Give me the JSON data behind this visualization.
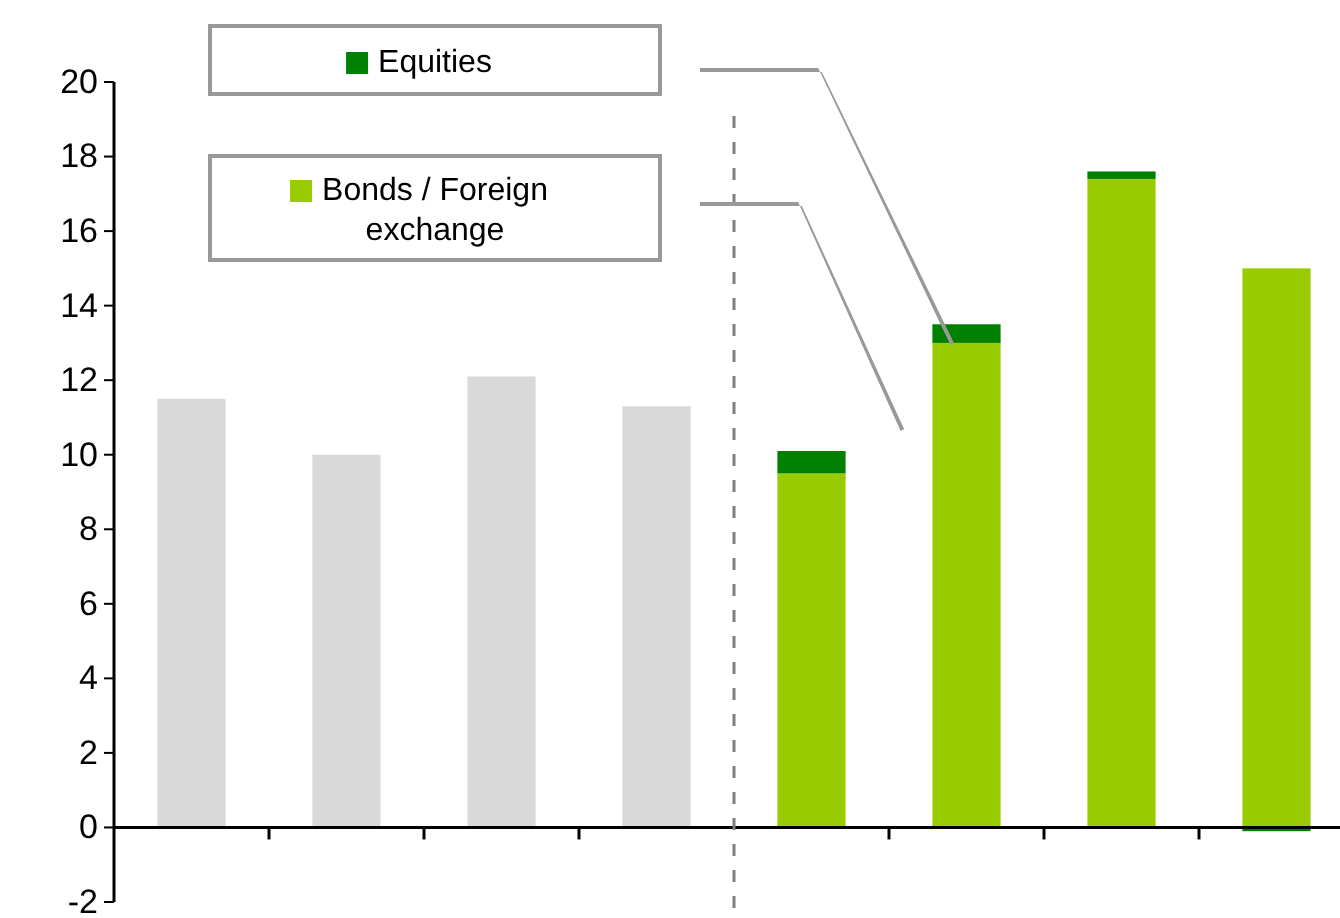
{
  "chart_data": {
    "type": "bar",
    "stacked": true,
    "legend": "top left",
    "grid": false,
    "categories": [
      null,
      null,
      null,
      null,
      null,
      null,
      null,
      null
    ],
    "series": [
      {
        "color": "#d9d9d9",
        "values": [
          11.5,
          10.0,
          12.1,
          11.3,
          null,
          null,
          null,
          null
        ]
      },
      {
        "name": "Bonds / Foreign exchange",
        "color": "#99cc00",
        "values": [
          null,
          null,
          null,
          null,
          9.5,
          13.0,
          17.4,
          15.0
        ]
      },
      {
        "name": "Equities",
        "color": "#008000",
        "values": [
          null,
          null,
          null,
          null,
          0.6,
          0.5,
          0.2,
          -0.1
        ]
      }
    ],
    "ylim": [
      -2,
      20
    ],
    "yticks": [
      -2,
      0,
      2,
      4,
      6,
      8,
      10,
      12,
      14,
      16,
      18,
      20
    ]
  }
}
